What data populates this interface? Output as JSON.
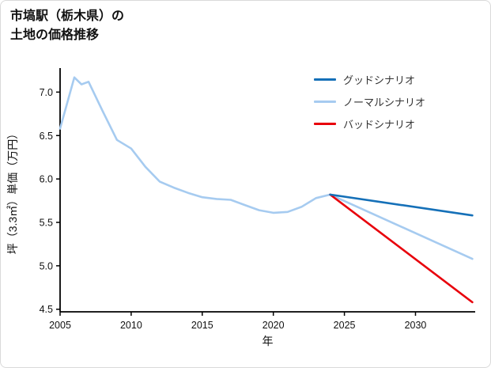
{
  "title": {
    "line1": "市塙駅（栃木県）の",
    "line2": "土地の価格推移"
  },
  "chart_data": {
    "type": "line",
    "title": "市塙駅（栃木県）の土地の価格推移",
    "xlabel": "年",
    "ylabel": "坪（3.3㎡）単価（万円）",
    "xlim": [
      2005,
      2034.2
    ],
    "ylim": [
      4.47,
      7.25
    ],
    "xticks": [
      2005,
      2010,
      2015,
      2020,
      2025,
      2030
    ],
    "yticks": [
      4.5,
      5.0,
      5.5,
      6.0,
      6.5,
      7.0
    ],
    "ytick_labels": [
      "4.5",
      "5.0",
      "5.5",
      "6.0",
      "6.5",
      "7.0"
    ],
    "grid": false,
    "legend_position": "upper right",
    "series": [
      {
        "key": "good",
        "name": "グッドシナリオ",
        "color": "#1570b8",
        "x": [
          2024,
          2034
        ],
        "y": [
          5.82,
          5.58
        ]
      },
      {
        "key": "normal",
        "name": "ノーマルシナリオ",
        "color": "#a6cbf0",
        "x": [
          2005,
          2006,
          2006.5,
          2007,
          2008,
          2009,
          2010,
          2011,
          2012,
          2013,
          2014,
          2015,
          2016,
          2017,
          2018,
          2019,
          2020,
          2021,
          2022,
          2023,
          2024,
          2034
        ],
        "y": [
          6.58,
          7.17,
          7.09,
          7.12,
          6.78,
          6.45,
          6.35,
          6.14,
          5.97,
          5.9,
          5.84,
          5.79,
          5.77,
          5.76,
          5.7,
          5.64,
          5.61,
          5.62,
          5.68,
          5.78,
          5.82,
          5.08
        ]
      },
      {
        "key": "bad",
        "name": "バッドシナリオ",
        "color": "#e8000b",
        "x": [
          2024,
          2034
        ],
        "y": [
          5.82,
          4.58
        ]
      }
    ]
  }
}
